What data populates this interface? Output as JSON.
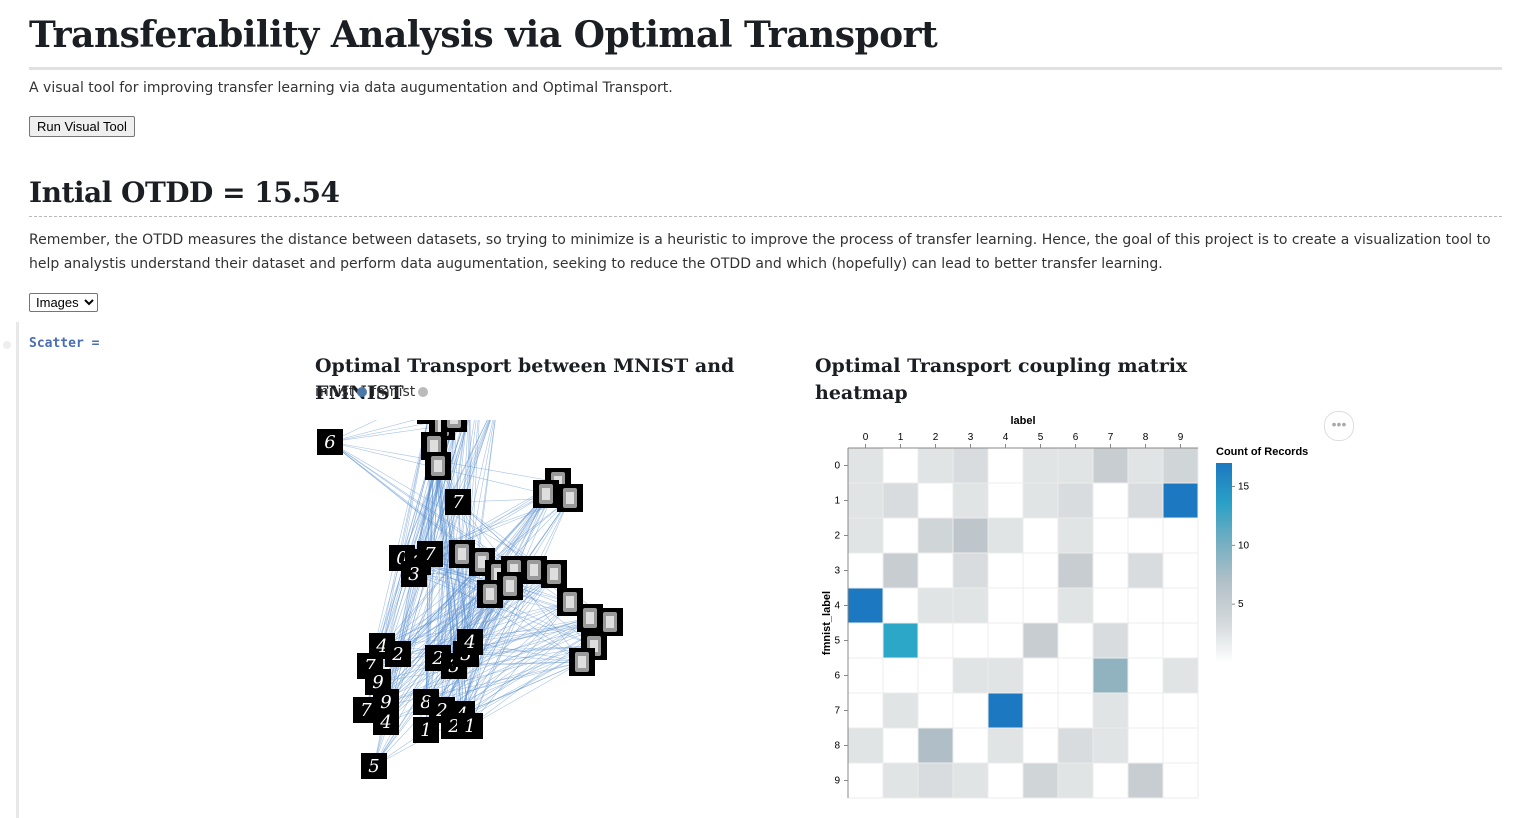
{
  "header": {
    "title": "Transferability Analysis via Optimal Transport",
    "subtitle": "A visual tool for improving transfer learning via data augumentation and Optimal Transport.",
    "run_button": "Run Visual Tool"
  },
  "otdd": {
    "heading": "Intial OTDD = 15.54",
    "paragraph": "Remember, the OTDD measures the distance between datasets, so trying to minimize is a heuristic to improve the process of transfer learning. Hence, the goal of this project is to create a visualization tool to help analystis understand their dataset and perform data augumentation, seeking to reduce the OTDD and which (hopefully) can lead to better transfer learning."
  },
  "view_select": {
    "selected": "Images"
  },
  "cell": {
    "label": "Scatter ="
  },
  "colors": {
    "mnist": "#4c78a8",
    "fmnist": "#bbbbbb",
    "link": "#5b8fcf"
  },
  "chart_data": [
    {
      "type": "scatter",
      "title": "Optimal Transport between MNIST and FMNIST",
      "legend": [
        {
          "name": "mnist",
          "color": "#4c78a8"
        },
        {
          "name": "fmnist",
          "color": "#bbbbbb"
        }
      ],
      "mnist_digits": [
        {
          "d": "6",
          "x": -3.0,
          "y": 4.2
        },
        {
          "d": "0",
          "x": -1.2,
          "y": 1.3
        },
        {
          "d": "2",
          "x": -0.8,
          "y": 1.2
        },
        {
          "d": "7",
          "x": -0.5,
          "y": 1.4
        },
        {
          "d": "3",
          "x": -0.9,
          "y": 0.9
        },
        {
          "d": "4",
          "x": -1.7,
          "y": -0.9
        },
        {
          "d": "2",
          "x": -1.3,
          "y": -1.1
        },
        {
          "d": "7",
          "x": -2.0,
          "y": -1.4
        },
        {
          "d": "2",
          "x": -0.3,
          "y": -1.2
        },
        {
          "d": "3",
          "x": 0.1,
          "y": -1.4
        },
        {
          "d": "3",
          "x": 0.4,
          "y": -1.1
        },
        {
          "d": "4",
          "x": 0.5,
          "y": -0.8
        },
        {
          "d": "9",
          "x": -1.8,
          "y": -1.8
        },
        {
          "d": "7",
          "x": -2.1,
          "y": -2.5
        },
        {
          "d": "9",
          "x": -1.6,
          "y": -2.3
        },
        {
          "d": "8",
          "x": -0.6,
          "y": -2.3
        },
        {
          "d": "2",
          "x": -0.2,
          "y": -2.5
        },
        {
          "d": "4",
          "x": 0.3,
          "y": -2.6
        },
        {
          "d": "4",
          "x": -1.6,
          "y": -2.8
        },
        {
          "d": "1",
          "x": -0.6,
          "y": -3.0
        },
        {
          "d": "2",
          "x": 0.1,
          "y": -2.9
        },
        {
          "d": "1",
          "x": 0.5,
          "y": -2.9
        },
        {
          "d": "5",
          "x": -1.9,
          "y": -3.9
        },
        {
          "d": "7",
          "x": 0.2,
          "y": 2.7
        }
      ],
      "fmnist_items": [
        {
          "x": 0.8,
          "y": 6.0
        },
        {
          "x": 0.5,
          "y": 5.5
        },
        {
          "x": 1.2,
          "y": 5.3
        },
        {
          "x": -0.5,
          "y": 5.0
        },
        {
          "x": -0.2,
          "y": 4.6
        },
        {
          "x": -0.4,
          "y": 4.1
        },
        {
          "x": 0.1,
          "y": 4.8
        },
        {
          "x": -0.3,
          "y": 3.6
        },
        {
          "x": 2.7,
          "y": 3.2
        },
        {
          "x": 3.0,
          "y": 2.8
        },
        {
          "x": 2.4,
          "y": 2.9
        },
        {
          "x": 0.3,
          "y": 1.4
        },
        {
          "x": 0.8,
          "y": 1.2
        },
        {
          "x": 1.2,
          "y": 0.9
        },
        {
          "x": 1.6,
          "y": 1.0
        },
        {
          "x": 2.1,
          "y": 1.0
        },
        {
          "x": 2.6,
          "y": 0.9
        },
        {
          "x": 1.0,
          "y": 0.4
        },
        {
          "x": 1.5,
          "y": 0.6
        },
        {
          "x": 3.0,
          "y": 0.2
        },
        {
          "x": 3.5,
          "y": -0.2
        },
        {
          "x": 4.0,
          "y": -0.3
        },
        {
          "x": 3.6,
          "y": -0.9
        },
        {
          "x": 3.3,
          "y": -1.3
        }
      ]
    },
    {
      "type": "heatmap",
      "title": "Optimal Transport coupling matrix heatmap",
      "xlabel": "label",
      "ylabel": "fmnist_label",
      "x_categories": [
        "0",
        "1",
        "2",
        "3",
        "4",
        "5",
        "6",
        "7",
        "8",
        "9"
      ],
      "y_categories": [
        "0",
        "1",
        "2",
        "3",
        "4",
        "5",
        "6",
        "7",
        "8",
        "9"
      ],
      "legend_title": "Count of Records",
      "legend_ticks": [
        15,
        10,
        5
      ],
      "legend_range": [
        0,
        17
      ],
      "values": [
        [
          2,
          0,
          2,
          3,
          0,
          2,
          2,
          5,
          2,
          4
        ],
        [
          2,
          3,
          0,
          2,
          0,
          2,
          3,
          0,
          3,
          17
        ],
        [
          2,
          0,
          4,
          6,
          2,
          0,
          2,
          0,
          0,
          0
        ],
        [
          0,
          5,
          0,
          3,
          0,
          0,
          5,
          0,
          3,
          0
        ],
        [
          17,
          0,
          2,
          2,
          0,
          0,
          2,
          0,
          0,
          0
        ],
        [
          0,
          13,
          0,
          0,
          0,
          5,
          0,
          3,
          0,
          0
        ],
        [
          0,
          0,
          0,
          2,
          2,
          0,
          0,
          9,
          0,
          2
        ],
        [
          0,
          2,
          0,
          0,
          17,
          0,
          0,
          2,
          0,
          0
        ],
        [
          2,
          0,
          7,
          0,
          2,
          0,
          3,
          2,
          0,
          0
        ],
        [
          0,
          2,
          3,
          2,
          0,
          4,
          2,
          0,
          5,
          0
        ]
      ]
    }
  ]
}
